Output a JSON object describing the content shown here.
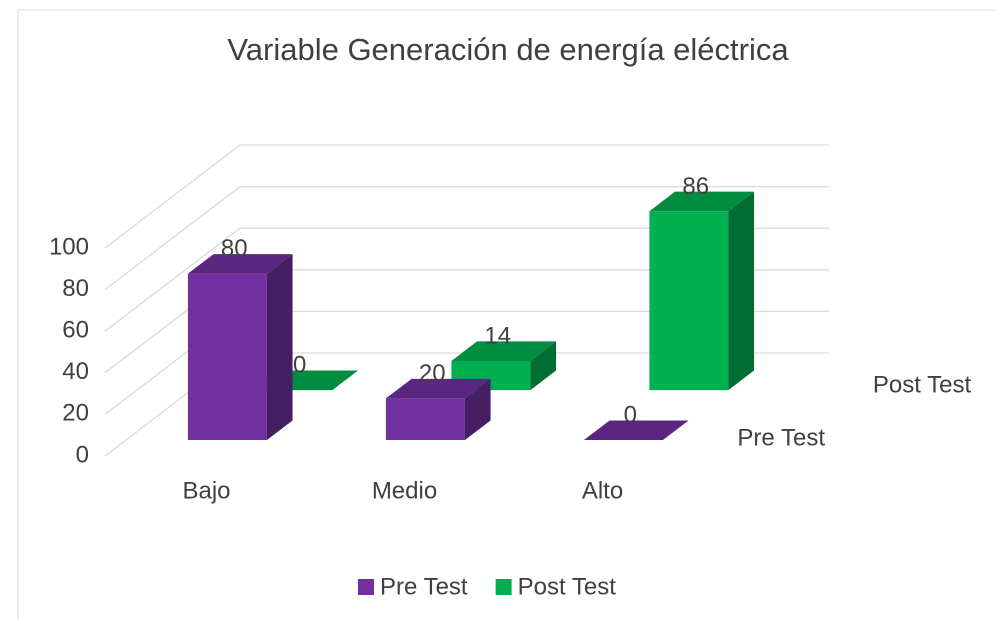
{
  "chart_data": {
    "type": "bar",
    "title": "Variable Generación de energía eléctrica",
    "categories": [
      "Bajo",
      "Medio",
      "Alto"
    ],
    "series": [
      {
        "name": "Pre Test",
        "color": "#7030a0",
        "values": [
          80,
          20,
          0
        ]
      },
      {
        "name": "Post Test",
        "color": "#00b050",
        "values": [
          0,
          14,
          86
        ]
      }
    ],
    "ylim": [
      0,
      100
    ],
    "yticks": [
      0,
      20,
      40,
      60,
      80,
      100
    ],
    "grid": true,
    "legend": "bottom"
  }
}
